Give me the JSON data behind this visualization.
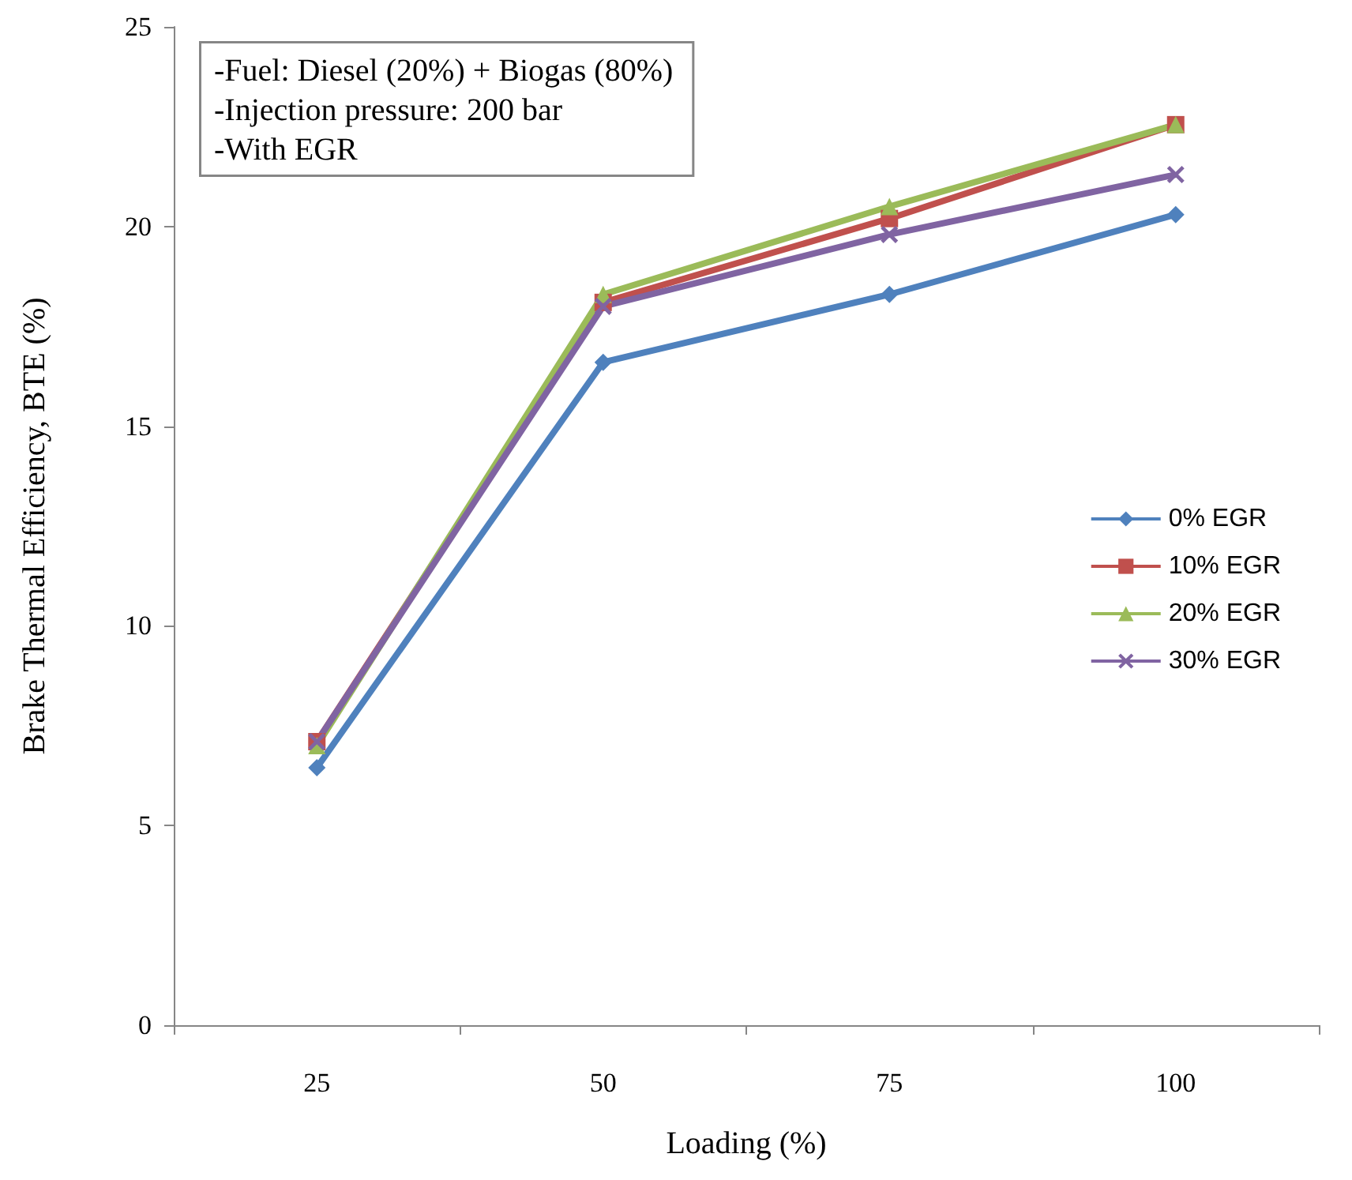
{
  "chart_data": {
    "type": "line",
    "xlabel": "Loading (%)",
    "ylabel": "Brake Thermal Efficiency, BTE (%)",
    "categories": [
      "25",
      "50",
      "75",
      "100"
    ],
    "ylim": [
      0,
      25
    ],
    "yticks": [
      0,
      5,
      10,
      15,
      20,
      25
    ],
    "grid": false,
    "legend": "right",
    "annotations": [
      "-Fuel: Diesel (20%) + Biogas (80%)",
      "-Injection pressure: 200 bar",
      "-With EGR"
    ],
    "series": [
      {
        "name": "0% EGR",
        "color": "#4f81bd",
        "marker": "diamond",
        "values": [
          6.45,
          16.6,
          18.3,
          20.3
        ]
      },
      {
        "name": "10% EGR",
        "color": "#c0504d",
        "marker": "square",
        "values": [
          7.1,
          18.1,
          20.2,
          22.55
        ]
      },
      {
        "name": "20% EGR",
        "color": "#9bbb59",
        "marker": "triangle",
        "values": [
          7.0,
          18.3,
          20.5,
          22.55
        ]
      },
      {
        "name": "30% EGR",
        "color": "#8064a2",
        "marker": "cross",
        "values": [
          7.1,
          18.0,
          19.8,
          21.3
        ]
      }
    ]
  }
}
